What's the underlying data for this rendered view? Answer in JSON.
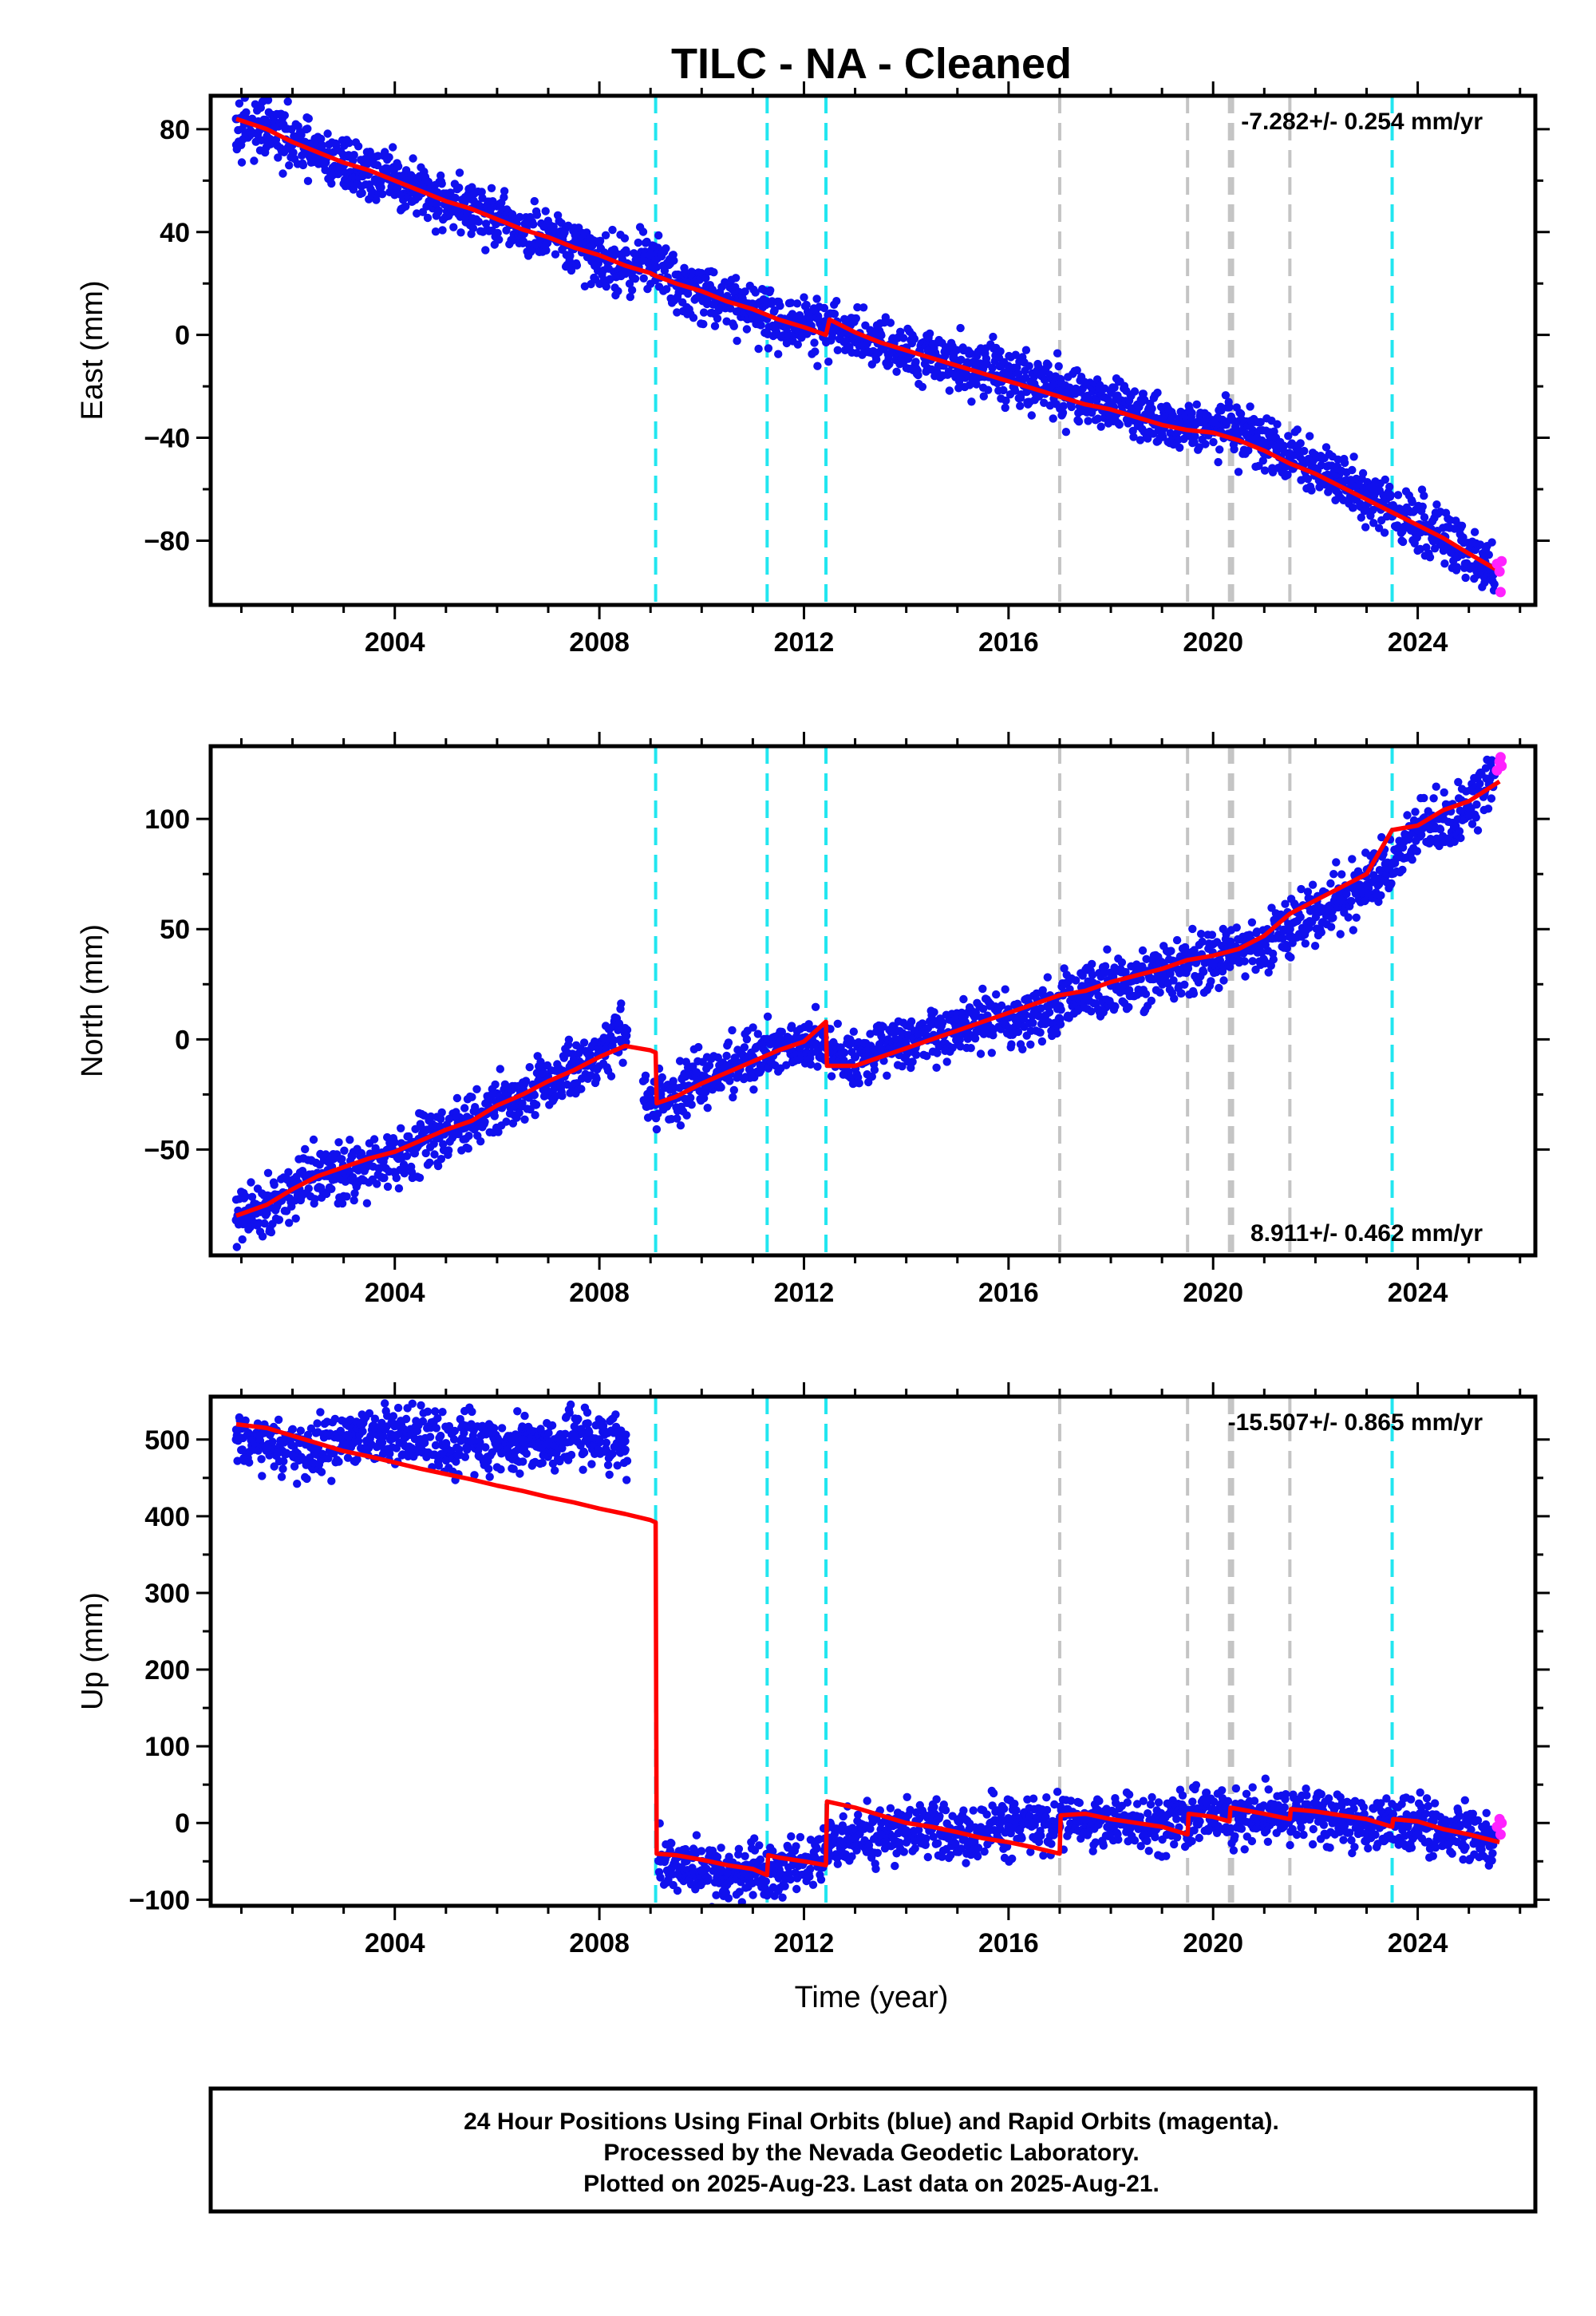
{
  "title": "TILC  - NA - Cleaned",
  "xlabel": "Time (year)",
  "footer": {
    "line1": "24 Hour Positions Using Final Orbits (blue) and Rapid Orbits (magenta).",
    "line2": "Processed by the Nevada Geodetic Laboratory.",
    "line3": "Plotted on 2025-Aug-23. Last data on 2025-Aug-21."
  },
  "colors": {
    "final_orbits": "#1010ee",
    "rapid_orbits": "#ff22ff",
    "model": "#ff0000",
    "cyan_events": "#22e6f0",
    "gray_events": "#c4c4c4"
  },
  "chart_data": [
    {
      "type": "scatter",
      "panel": "east",
      "ylabel": "East (mm)",
      "rate": "-7.282+/- 0.254 mm/yr",
      "xlim": [
        2000.4,
        2026.3
      ],
      "ylim": [
        -105,
        93
      ],
      "xticks": [
        2004,
        2008,
        2012,
        2016,
        2020,
        2024
      ],
      "yticks": [
        80,
        40,
        0,
        -40,
        -80
      ],
      "ytick_labels": [
        "80",
        "40",
        "0",
        "−40",
        "−80"
      ],
      "cyan_events": [
        2009.1,
        2011.28,
        2012.43,
        2023.5
      ],
      "gray_events": [
        2017.0,
        2019.5,
        2020.32,
        2020.38,
        2021.5
      ],
      "series": [
        {
          "name": "Final Orbits",
          "x": [
            2000.9,
            2001.5,
            2002.0,
            2002.5,
            2003.0,
            2003.5,
            2004.0,
            2004.5,
            2005.0,
            2005.5,
            2006.0,
            2006.5,
            2007.0,
            2007.5,
            2008.0,
            2008.5,
            2009.0,
            2009.5,
            2010.0,
            2010.5,
            2011.0,
            2011.5,
            2012.0,
            2012.5,
            2013.0,
            2013.5,
            2014.0,
            2014.5,
            2015.0,
            2015.5,
            2016.0,
            2016.5,
            2017.0,
            2017.5,
            2018.0,
            2018.5,
            2019.0,
            2019.5,
            2020.0,
            2020.5,
            2021.0,
            2021.5,
            2022.0,
            2022.5,
            2023.0,
            2023.5,
            2024.0,
            2024.5,
            2025.0,
            2025.5
          ],
          "y": [
            84,
            80,
            74,
            70,
            66,
            63,
            60,
            55,
            52,
            49,
            44,
            40,
            37,
            34,
            30,
            26,
            31,
            20,
            17,
            13,
            11,
            5,
            4,
            2,
            0,
            -3,
            -5,
            -8,
            -11,
            -13,
            -16,
            -19,
            -22,
            -24,
            -27,
            -30,
            -33,
            -36,
            -34,
            -38,
            -42,
            -47,
            -52,
            -57,
            -62,
            -67,
            -74,
            -80,
            -85,
            -92
          ]
        },
        {
          "name": "Rapid Orbits",
          "x": [
            2025.55,
            2025.6,
            2025.62,
            2025.64
          ],
          "y": [
            -89,
            -92,
            -100,
            -88
          ]
        },
        {
          "name": "Model",
          "x": [
            2000.9,
            2001.5,
            2002.0,
            2002.5,
            2003.0,
            2003.5,
            2004.0,
            2004.5,
            2005.0,
            2005.5,
            2006.0,
            2006.5,
            2007.0,
            2007.5,
            2008.0,
            2008.5,
            2009.0,
            2009.1,
            2009.5,
            2010.0,
            2010.5,
            2011.0,
            2011.5,
            2012.0,
            2012.43,
            2012.5,
            2013.0,
            2013.5,
            2014.0,
            2014.5,
            2015.0,
            2015.5,
            2016.0,
            2016.5,
            2017.0,
            2017.5,
            2018.0,
            2018.5,
            2019.0,
            2019.5,
            2020.0,
            2020.5,
            2021.0,
            2021.5,
            2022.0,
            2022.5,
            2023.0,
            2023.5,
            2024.0,
            2024.5,
            2025.0,
            2025.6
          ],
          "y": [
            84,
            80,
            75,
            71,
            67,
            64,
            60,
            56,
            52,
            49,
            45,
            41,
            38,
            34,
            31,
            27,
            24,
            23,
            20,
            17,
            13,
            10,
            6,
            3,
            0,
            6,
            1,
            -3,
            -6,
            -9,
            -12,
            -15,
            -18,
            -21,
            -24,
            -27,
            -29,
            -32,
            -35,
            -37,
            -38,
            -41,
            -45,
            -50,
            -54,
            -59,
            -64,
            -69,
            -74,
            -79,
            -85,
            -92
          ]
        }
      ]
    },
    {
      "type": "scatter",
      "panel": "north",
      "ylabel": "North (mm)",
      "rate": "8.911+/- 0.462 mm/yr",
      "xlim": [
        2000.4,
        2026.3
      ],
      "ylim": [
        -98,
        133
      ],
      "xticks": [
        2004,
        2008,
        2012,
        2016,
        2020,
        2024
      ],
      "yticks": [
        100,
        50,
        0,
        -50
      ],
      "ytick_labels": [
        "100",
        "50",
        "0",
        "−50"
      ],
      "cyan_events": [
        2009.1,
        2011.28,
        2012.43,
        2023.5
      ],
      "gray_events": [
        2017.0,
        2019.5,
        2020.32,
        2020.38,
        2021.5
      ],
      "series": [
        {
          "name": "Final Orbits",
          "x": [
            2000.9,
            2001.5,
            2002.0,
            2002.5,
            2003.0,
            2003.5,
            2004.0,
            2004.5,
            2005.0,
            2005.5,
            2006.0,
            2006.5,
            2007.0,
            2007.5,
            2008.0,
            2008.5,
            2009.0,
            2009.5,
            2010.0,
            2010.5,
            2011.0,
            2011.5,
            2012.0,
            2012.5,
            2013.0,
            2013.5,
            2014.0,
            2014.5,
            2015.0,
            2015.5,
            2016.0,
            2016.5,
            2017.0,
            2017.5,
            2018.0,
            2018.5,
            2019.0,
            2019.5,
            2020.0,
            2020.5,
            2021.0,
            2021.5,
            2022.0,
            2022.5,
            2023.0,
            2023.5,
            2024.0,
            2024.5,
            2025.0,
            2025.5
          ],
          "y": [
            -82,
            -75,
            -68,
            -62,
            -60,
            -57,
            -52,
            -47,
            -42,
            -38,
            -30,
            -25,
            -18,
            -14,
            -7,
            5,
            -30,
            -26,
            -18,
            -12,
            -8,
            -3,
            0,
            -6,
            -8,
            -4,
            -3,
            0,
            3,
            8,
            10,
            12,
            15,
            20,
            25,
            27,
            30,
            33,
            35,
            40,
            45,
            50,
            58,
            63,
            70,
            80,
            95,
            100,
            105,
            120
          ]
        },
        {
          "name": "Rapid Orbits",
          "x": [
            2025.55,
            2025.6,
            2025.62,
            2025.64
          ],
          "y": [
            122,
            126,
            128,
            124
          ]
        },
        {
          "name": "Model",
          "x": [
            2000.9,
            2001.5,
            2002.0,
            2002.5,
            2003.0,
            2003.5,
            2004.0,
            2004.5,
            2005.0,
            2005.5,
            2006.0,
            2006.5,
            2007.0,
            2007.5,
            2008.0,
            2008.5,
            2009.0,
            2009.1,
            2009.12,
            2009.5,
            2010.0,
            2010.5,
            2011.0,
            2011.5,
            2012.0,
            2012.43,
            2012.45,
            2013.0,
            2013.5,
            2014.0,
            2014.5,
            2015.0,
            2015.5,
            2016.0,
            2016.5,
            2017.0,
            2017.5,
            2018.0,
            2018.5,
            2019.0,
            2019.5,
            2020.0,
            2020.5,
            2021.0,
            2021.5,
            2022.0,
            2022.5,
            2023.0,
            2023.5,
            2024.0,
            2024.5,
            2025.0,
            2025.6
          ],
          "y": [
            -80,
            -75,
            -68,
            -62,
            -58,
            -54,
            -51,
            -46,
            -41,
            -37,
            -30,
            -25,
            -19,
            -14,
            -8,
            -3,
            -5,
            -6,
            -29,
            -26,
            -20,
            -15,
            -10,
            -5,
            -1,
            8,
            -12,
            -12,
            -8,
            -4,
            0,
            4,
            8,
            12,
            16,
            20,
            22,
            26,
            29,
            32,
            36,
            38,
            41,
            47,
            57,
            63,
            69,
            75,
            95,
            97,
            104,
            108,
            117
          ]
        }
      ]
    },
    {
      "type": "scatter",
      "panel": "up",
      "ylabel": "Up (mm)",
      "rate": "-15.507+/- 0.865 mm/yr",
      "xlim": [
        2000.4,
        2026.3
      ],
      "ylim": [
        -108,
        556
      ],
      "xticks": [
        2004,
        2008,
        2012,
        2016,
        2020,
        2024
      ],
      "yticks": [
        500,
        400,
        300,
        200,
        100,
        0,
        -100
      ],
      "ytick_labels": [
        "500",
        "400",
        "300",
        "200",
        "100",
        "0",
        "−100"
      ],
      "cyan_events": [
        2009.1,
        2011.28,
        2012.43,
        2023.5
      ],
      "gray_events": [
        2017.0,
        2019.5,
        2020.32,
        2020.38,
        2021.5
      ],
      "series": [
        {
          "name": "Final Orbits",
          "x": [
            2000.9,
            2001.5,
            2002.0,
            2002.5,
            2003.0,
            2003.5,
            2004.0,
            2004.5,
            2005.0,
            2005.5,
            2006.0,
            2006.5,
            2007.0,
            2007.5,
            2008.0,
            2008.5,
            2009.2,
            2009.6,
            2010.0,
            2010.5,
            2011.0,
            2011.5,
            2012.0,
            2012.5,
            2013.0,
            2013.5,
            2014.0,
            2014.5,
            2015.0,
            2015.5,
            2016.0,
            2016.5,
            2017.0,
            2017.5,
            2018.0,
            2018.5,
            2019.0,
            2019.5,
            2020.0,
            2020.5,
            2021.0,
            2021.5,
            2022.0,
            2022.5,
            2023.0,
            2023.5,
            2024.0,
            2024.5,
            2025.0,
            2025.5
          ],
          "y": [
            500,
            490,
            480,
            490,
            495,
            500,
            505,
            500,
            495,
            498,
            490,
            500,
            495,
            505,
            500,
            498,
            -50,
            -58,
            -62,
            -65,
            -60,
            -55,
            -50,
            -30,
            -20,
            -15,
            -10,
            -8,
            -15,
            -10,
            -5,
            0,
            -5,
            5,
            0,
            5,
            2,
            8,
            10,
            5,
            8,
            10,
            12,
            5,
            2,
            0,
            -5,
            -10,
            -15,
            -20
          ]
        },
        {
          "name": "Rapid Orbits",
          "x": [
            2025.55,
            2025.6,
            2025.62,
            2025.64
          ],
          "y": [
            -5,
            5,
            -15,
            0
          ]
        },
        {
          "name": "Model",
          "x": [
            2000.9,
            2001.5,
            2002.0,
            2002.5,
            2003.0,
            2003.5,
            2004.0,
            2004.5,
            2005.0,
            2005.5,
            2006.0,
            2006.5,
            2007.0,
            2007.5,
            2008.0,
            2008.5,
            2009.0,
            2009.1,
            2009.12,
            2009.5,
            2010.0,
            2010.5,
            2011.0,
            2011.28,
            2011.3,
            2011.5,
            2012.0,
            2012.43,
            2012.45,
            2013.0,
            2013.5,
            2014.0,
            2014.5,
            2015.0,
            2015.5,
            2016.0,
            2016.5,
            2017.0,
            2017.02,
            2017.5,
            2018.0,
            2018.5,
            2019.0,
            2019.5,
            2019.52,
            2020.0,
            2020.32,
            2020.34,
            2021.0,
            2021.5,
            2021.52,
            2022.0,
            2022.5,
            2023.0,
            2023.5,
            2023.52,
            2024.0,
            2024.5,
            2025.0,
            2025.6
          ],
          "y": [
            520,
            515,
            505,
            495,
            485,
            478,
            470,
            462,
            455,
            448,
            440,
            433,
            425,
            418,
            410,
            403,
            395,
            392,
            -40,
            -42,
            -48,
            -55,
            -60,
            -68,
            -42,
            -45,
            -50,
            -55,
            28,
            20,
            10,
            0,
            -5,
            -12,
            -20,
            -25,
            -32,
            -40,
            10,
            12,
            5,
            0,
            -5,
            -15,
            12,
            8,
            2,
            20,
            12,
            5,
            18,
            15,
            10,
            5,
            -5,
            5,
            2,
            -8,
            -15,
            -25
          ]
        }
      ]
    }
  ]
}
